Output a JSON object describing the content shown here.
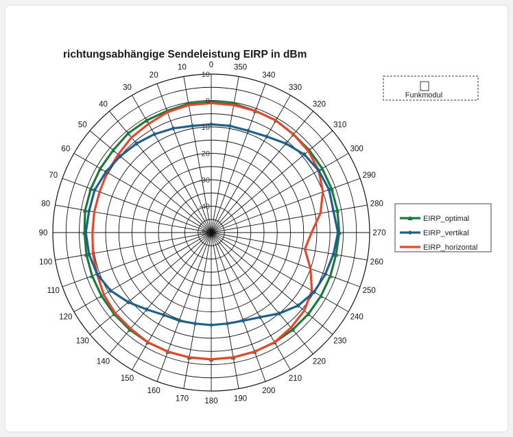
{
  "chart_data": {
    "type": "radar",
    "title": "richtungsabhängige Sendeleistung EIRP in dBm",
    "angles": [
      0,
      10,
      20,
      30,
      40,
      50,
      60,
      70,
      80,
      90,
      100,
      110,
      120,
      130,
      140,
      150,
      160,
      170,
      180,
      190,
      200,
      210,
      220,
      230,
      240,
      250,
      260,
      270,
      280,
      290,
      300,
      310,
      320,
      330,
      340,
      350
    ],
    "radial_ticks": [
      10,
      0,
      -10,
      -20,
      -30,
      -40,
      -50
    ],
    "rlim": [
      -50,
      10
    ],
    "grid": true,
    "device_box_label": "Funkmodul",
    "legend_position": "right",
    "series": [
      {
        "name": "EIRP_optimal",
        "color": "#1a7a3a",
        "values": [
          -0.5,
          -0.5,
          -1,
          -1,
          -1,
          -1.5,
          -1.5,
          -1.5,
          -1.5,
          -2,
          -2,
          -2,
          -2,
          -2,
          -2,
          -2,
          -2,
          -2,
          -2,
          -2,
          -2,
          -2,
          -2,
          -2,
          -2,
          -2,
          -2,
          -1.5,
          -1.5,
          -1.5,
          -1.5,
          -1.5,
          -1.5,
          -1,
          -1,
          -0.5
        ]
      },
      {
        "name": "EIRP_vertikal",
        "color": "#1f5f8b",
        "values": [
          -9,
          -9,
          -8,
          -7,
          -6,
          -5,
          -4,
          -3,
          -3,
          -2.5,
          -3,
          -4,
          -6,
          -9,
          -12,
          -14,
          -14.5,
          -15,
          -15,
          -15,
          -14.5,
          -13,
          -10,
          -7,
          -5,
          -4,
          -3,
          -2,
          -3,
          -2.5,
          -3,
          -4,
          -6,
          -8,
          -9,
          -9
        ]
      },
      {
        "name": "EIRP_horizontal",
        "color": "#e8462b",
        "values": [
          -1,
          -1,
          -1.5,
          -2.5,
          -3,
          -4,
          -4.5,
          -5,
          -5,
          -5,
          -4.5,
          -4,
          -3,
          -2.5,
          -2.5,
          -2,
          -2,
          -2,
          -2,
          -2,
          -2,
          -2,
          -3,
          -4,
          -6,
          -10,
          -14,
          -12,
          -8,
          -5,
          -3,
          -2,
          -1.5,
          -1,
          -1,
          -1
        ]
      }
    ]
  }
}
